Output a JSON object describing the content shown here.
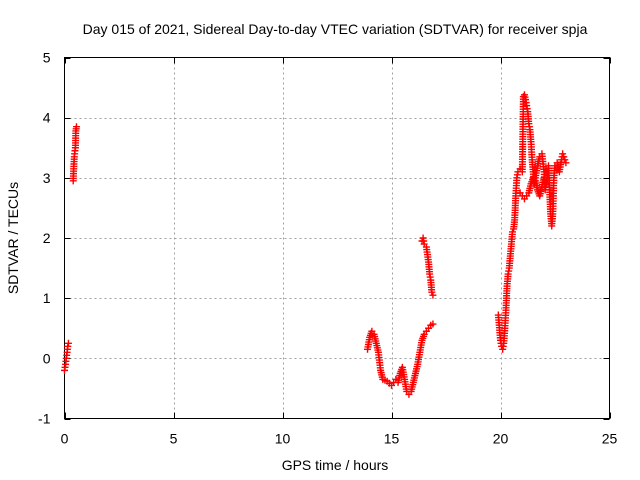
{
  "chart_data": {
    "type": "scatter",
    "title": "Day 015 of 2021, Sidereal Day-to-day VTEC variation (SDTVAR) for receiver spja",
    "xlabel": "GPS time / hours",
    "ylabel": "SDTVAR / TECUs",
    "xlim": [
      0,
      25
    ],
    "ylim": [
      -1,
      5
    ],
    "xticks": [
      0,
      5,
      10,
      15,
      20,
      25
    ],
    "yticks": [
      -1,
      0,
      1,
      2,
      3,
      4,
      5
    ],
    "grid": true,
    "marker": "+",
    "series": [
      {
        "name": "SDTVAR",
        "color": "#ff0000",
        "segments": [
          [
            [
              0.0,
              -0.2
            ],
            [
              0.05,
              -0.1
            ],
            [
              0.08,
              0.0
            ],
            [
              0.1,
              0.05
            ],
            [
              0.12,
              0.1
            ],
            [
              0.15,
              0.2
            ],
            [
              0.18,
              0.25
            ]
          ],
          [
            [
              0.4,
              2.95
            ],
            [
              0.42,
              3.15
            ],
            [
              0.45,
              3.35
            ],
            [
              0.48,
              3.45
            ],
            [
              0.5,
              3.5
            ],
            [
              0.52,
              3.78
            ],
            [
              0.55,
              3.85
            ]
          ],
          [
            [
              13.9,
              0.15
            ],
            [
              14.0,
              0.35
            ],
            [
              14.1,
              0.45
            ],
            [
              14.2,
              0.4
            ],
            [
              14.3,
              0.25
            ],
            [
              14.4,
              0.1
            ],
            [
              14.5,
              -0.2
            ],
            [
              14.6,
              -0.35
            ],
            [
              14.8,
              -0.38
            ],
            [
              15.0,
              -0.45
            ],
            [
              15.1,
              -0.4
            ],
            [
              15.2,
              -0.35
            ],
            [
              15.3,
              -0.4
            ],
            [
              15.4,
              -0.25
            ],
            [
              15.5,
              -0.15
            ],
            [
              15.6,
              -0.35
            ],
            [
              15.7,
              -0.55
            ],
            [
              15.8,
              -0.6
            ],
            [
              15.9,
              -0.55
            ],
            [
              16.0,
              -0.4
            ],
            [
              16.1,
              -0.25
            ],
            [
              16.2,
              -0.1
            ],
            [
              16.3,
              0.1
            ],
            [
              16.4,
              0.3
            ],
            [
              16.5,
              0.4
            ],
            [
              16.6,
              0.45
            ],
            [
              16.7,
              0.5
            ],
            [
              16.8,
              0.55
            ],
            [
              16.9,
              0.57
            ]
          ],
          [
            [
              16.4,
              1.95
            ],
            [
              16.45,
              2.0
            ],
            [
              16.5,
              1.9
            ],
            [
              16.6,
              1.85
            ],
            [
              16.7,
              1.6
            ],
            [
              16.75,
              1.4
            ],
            [
              16.8,
              1.3
            ],
            [
              16.85,
              1.1
            ],
            [
              16.9,
              1.05
            ]
          ],
          [
            [
              19.9,
              0.72
            ],
            [
              20.0,
              0.3
            ],
            [
              20.05,
              0.2
            ],
            [
              20.1,
              0.15
            ],
            [
              20.15,
              0.25
            ],
            [
              20.2,
              0.5
            ],
            [
              20.25,
              0.8
            ],
            [
              20.3,
              1.2
            ],
            [
              20.35,
              1.4
            ],
            [
              20.4,
              1.5
            ],
            [
              20.5,
              1.9
            ],
            [
              20.55,
              2.1
            ],
            [
              20.6,
              2.15
            ],
            [
              20.65,
              2.3
            ],
            [
              20.7,
              2.7
            ],
            [
              20.75,
              3.0
            ],
            [
              20.8,
              3.1
            ],
            [
              20.9,
              3.15
            ],
            [
              21.0,
              3.1
            ],
            [
              21.05,
              4.35
            ],
            [
              21.1,
              4.38
            ],
            [
              21.15,
              4.3
            ],
            [
              21.2,
              4.2
            ],
            [
              21.25,
              4.1
            ],
            [
              21.3,
              3.9
            ],
            [
              21.35,
              3.8
            ],
            [
              21.4,
              3.6
            ],
            [
              21.45,
              3.3
            ],
            [
              21.5,
              3.1
            ],
            [
              21.55,
              2.9
            ],
            [
              21.6,
              3.0
            ],
            [
              21.7,
              3.2
            ],
            [
              21.8,
              3.35
            ],
            [
              21.9,
              3.4
            ],
            [
              22.0,
              3.1
            ],
            [
              22.05,
              2.8
            ],
            [
              22.1,
              2.9
            ],
            [
              22.15,
              3.0
            ],
            [
              22.2,
              3.2
            ],
            [
              22.25,
              2.8
            ],
            [
              22.3,
              2.4
            ],
            [
              22.35,
              2.2
            ],
            [
              22.4,
              2.4
            ],
            [
              22.45,
              3.0
            ],
            [
              22.5,
              3.2
            ],
            [
              22.6,
              3.25
            ],
            [
              22.7,
              3.1
            ],
            [
              22.8,
              3.3
            ],
            [
              22.85,
              3.4
            ],
            [
              22.9,
              3.35
            ],
            [
              22.95,
              3.3
            ],
            [
              23.0,
              3.25
            ]
          ],
          [
            [
              20.9,
              2.75
            ],
            [
              21.0,
              2.7
            ],
            [
              21.1,
              2.65
            ],
            [
              21.2,
              2.7
            ],
            [
              21.3,
              2.75
            ],
            [
              21.4,
              2.9
            ],
            [
              21.5,
              3.0
            ],
            [
              21.6,
              2.95
            ],
            [
              21.7,
              2.8
            ],
            [
              21.8,
              2.7
            ],
            [
              21.9,
              2.85
            ],
            [
              22.0,
              3.0
            ]
          ]
        ]
      }
    ]
  }
}
